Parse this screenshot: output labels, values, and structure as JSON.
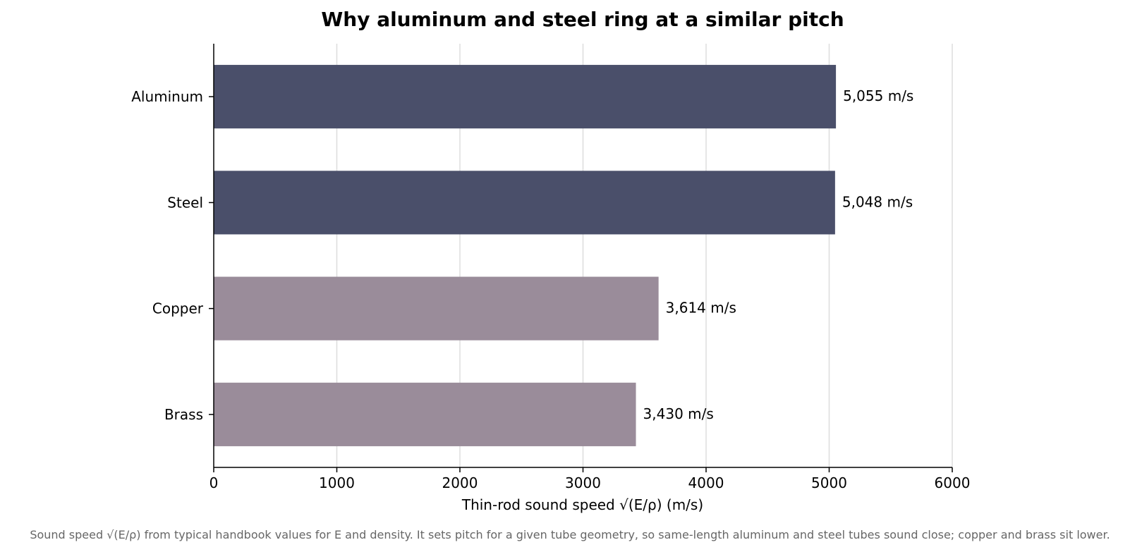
{
  "chart_data": {
    "type": "bar",
    "orientation": "horizontal",
    "title": "Why aluminum and steel ring at a similar pitch",
    "xlabel": "Thin-rod sound speed  √(E/ρ)  (m/s)",
    "ylabel": "",
    "xlim": [
      0,
      6000
    ],
    "xticks": [
      0,
      1000,
      2000,
      3000,
      4000,
      5000,
      6000
    ],
    "grid": "x",
    "categories": [
      "Aluminum",
      "Steel",
      "Copper",
      "Brass"
    ],
    "values": [
      5055,
      5048,
      3614,
      3430
    ],
    "data_labels": [
      "5,055 m/s",
      "5,048 m/s",
      "3,614 m/s",
      "3,430 m/s"
    ],
    "colors": [
      "#4a4f6a",
      "#4a4f6a",
      "#9a8c9a",
      "#9a8c9a"
    ],
    "caption": "Sound speed √(E/ρ) from typical handbook values for E and density. It sets pitch for a given tube geometry, so same-length aluminum and steel tubes sound close; copper and brass sit lower."
  }
}
